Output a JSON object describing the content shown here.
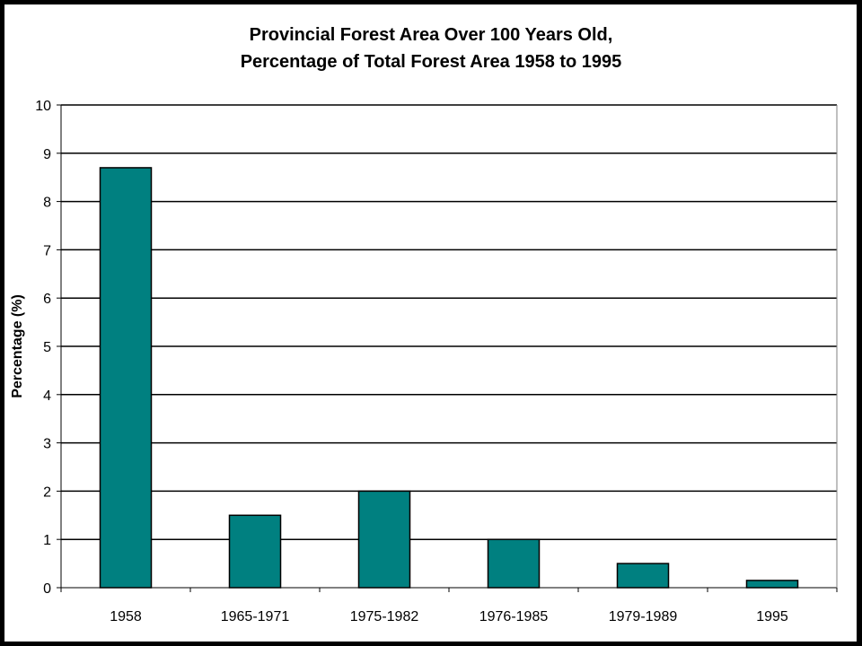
{
  "chart_data": {
    "type": "bar",
    "title": "Provincial Forest Area Over 100 Years Old,",
    "subtitle": "Percentage of Total Forest Area 1958 to 1995",
    "xlabel": "",
    "ylabel": "Percentage (%)",
    "categories": [
      "1958",
      "1965-1971",
      "1975-1982",
      "1976-1985",
      "1979-1989",
      "1995"
    ],
    "values": [
      8.7,
      1.5,
      2.0,
      1.0,
      0.5,
      0.15
    ],
    "ylim": [
      0,
      10
    ],
    "yticks": [
      "0",
      "1",
      "2",
      "3",
      "4",
      "5",
      "6",
      "7",
      "8",
      "9",
      "10"
    ],
    "grid": true,
    "legend": "none",
    "bar_color": "#008080"
  }
}
